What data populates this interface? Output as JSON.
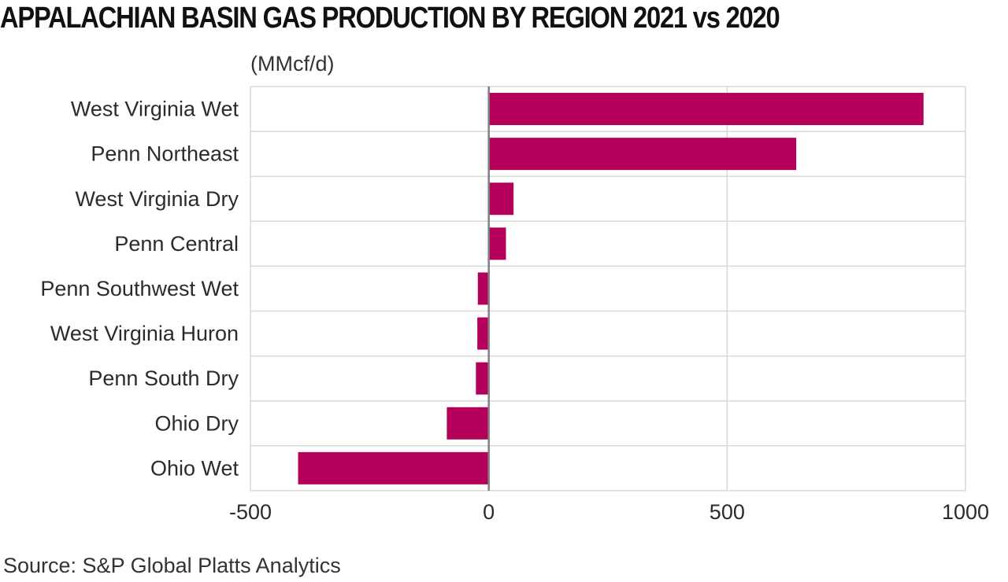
{
  "header": {
    "title": "APPALACHIAN BASIN GAS PRODUCTION BY REGION 2021 vs 2020",
    "unit": "(MMcf/d)"
  },
  "footer": {
    "source": "Source: S&P Global Platts Analytics"
  },
  "colors": {
    "bar": "#b5005b",
    "grid": "#d9d9d9",
    "zero_line": "#7f7f7f"
  },
  "chart_data": {
    "type": "bar",
    "orientation": "horizontal",
    "title": "APPALACHIAN BASIN GAS PRODUCTION BY REGION 2021 vs 2020",
    "ylabel": "(MMcf/d)",
    "categories": [
      "West Virginia Wet",
      "Penn Northeast",
      "West Virginia Dry",
      "Penn Central",
      "Penn Southwest Wet",
      "West Virginia Huron",
      "Penn South Dry",
      "Ohio Dry",
      "Ohio Wet"
    ],
    "values": [
      912,
      645,
      52,
      36,
      -23,
      -24,
      -27,
      -88,
      -400
    ],
    "xlim": [
      -500,
      1000
    ],
    "xticks": [
      -500,
      0,
      500,
      1000
    ],
    "xtick_labels": [
      "-500",
      "0",
      "500",
      "1000"
    ],
    "grid": true,
    "legend": "none"
  }
}
